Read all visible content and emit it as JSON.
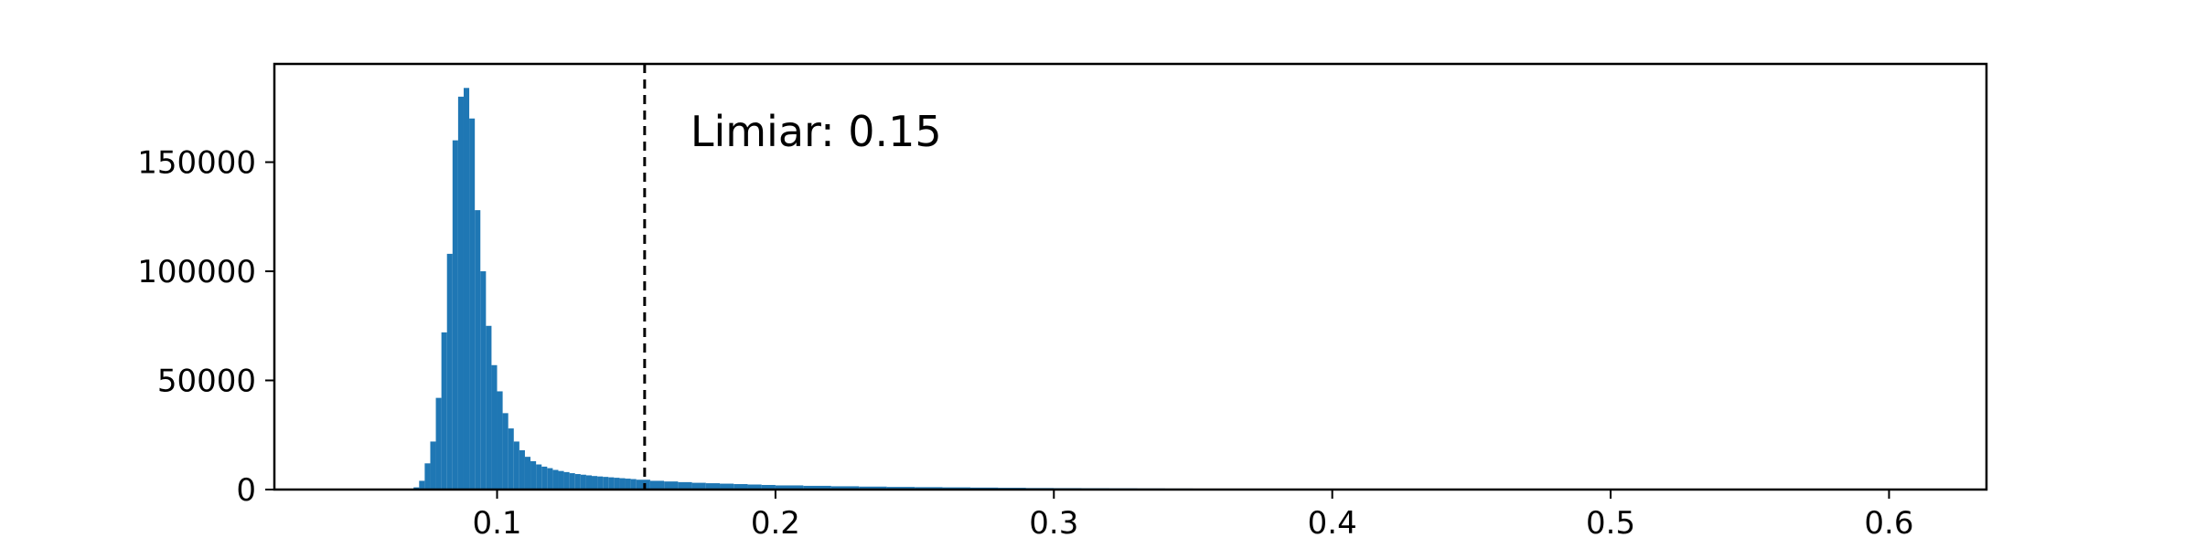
{
  "chart_data": {
    "type": "bar",
    "title": "",
    "xlabel": "",
    "ylabel": "",
    "xlim": [
      0.02,
      0.635
    ],
    "ylim": [
      0,
      195000
    ],
    "grid": false,
    "x_ticks": [
      0.1,
      0.2,
      0.3,
      0.4,
      0.5,
      0.6
    ],
    "x_tick_labels": [
      "0.1",
      "0.2",
      "0.3",
      "0.4",
      "0.5",
      "0.6"
    ],
    "y_ticks": [
      0,
      50000,
      100000,
      150000
    ],
    "y_tick_labels": [
      "0",
      "50000",
      "100000",
      "150000"
    ],
    "bar_color": "#1f77b4",
    "threshold": {
      "value": 0.153,
      "label": "Limiar: 0.15",
      "color": "#000000"
    },
    "bins": [
      0.07,
      0.072,
      0.074,
      0.076,
      0.078,
      0.08,
      0.082,
      0.084,
      0.086,
      0.088,
      0.09,
      0.092,
      0.094,
      0.096,
      0.098,
      0.1,
      0.102,
      0.104,
      0.106,
      0.108,
      0.11,
      0.112,
      0.114,
      0.116,
      0.118,
      0.12,
      0.122,
      0.124,
      0.126,
      0.128,
      0.13,
      0.132,
      0.134,
      0.136,
      0.138,
      0.14,
      0.142,
      0.144,
      0.146,
      0.148,
      0.15,
      0.155,
      0.16,
      0.165,
      0.17,
      0.175,
      0.18,
      0.185,
      0.19,
      0.195,
      0.2,
      0.21,
      0.22,
      0.23,
      0.24,
      0.25,
      0.26,
      0.27,
      0.28,
      0.29,
      0.3,
      0.31,
      0.32,
      0.33,
      0.34,
      0.35
    ],
    "bin_width": [
      0.002,
      0.002,
      0.002,
      0.002,
      0.002,
      0.002,
      0.002,
      0.002,
      0.002,
      0.002,
      0.002,
      0.002,
      0.002,
      0.002,
      0.002,
      0.002,
      0.002,
      0.002,
      0.002,
      0.002,
      0.002,
      0.002,
      0.002,
      0.002,
      0.002,
      0.002,
      0.002,
      0.002,
      0.002,
      0.002,
      0.002,
      0.002,
      0.002,
      0.002,
      0.002,
      0.002,
      0.002,
      0.002,
      0.002,
      0.002,
      0.005,
      0.005,
      0.005,
      0.005,
      0.005,
      0.005,
      0.005,
      0.005,
      0.005,
      0.005,
      0.01,
      0.01,
      0.01,
      0.01,
      0.01,
      0.01,
      0.01,
      0.01,
      0.01,
      0.01,
      0.01,
      0.01,
      0.01,
      0.01,
      0.01,
      0.005
    ],
    "values": [
      1000,
      4000,
      12000,
      22000,
      42000,
      72000,
      108000,
      160000,
      180000,
      184000,
      170000,
      128000,
      100000,
      75000,
      57000,
      45000,
      35000,
      28000,
      22000,
      18000,
      15000,
      13000,
      11500,
      10500,
      9800,
      9000,
      8500,
      8000,
      7500,
      7100,
      6800,
      6500,
      6200,
      6000,
      5800,
      5600,
      5400,
      5200,
      5000,
      4800,
      4500,
      4000,
      3700,
      3400,
      3100,
      2900,
      2700,
      2500,
      2300,
      2100,
      1900,
      1700,
      1500,
      1350,
      1200,
      1100,
      1000,
      900,
      800,
      700,
      650,
      600,
      550,
      500,
      450,
      400
    ]
  }
}
